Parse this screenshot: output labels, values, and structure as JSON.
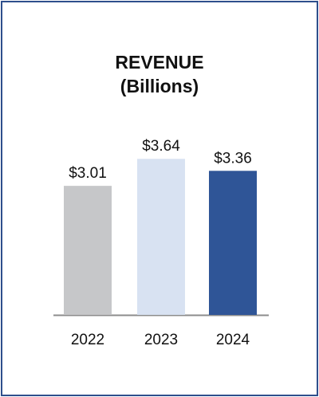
{
  "chart_data": {
    "type": "bar",
    "title": "REVENUE",
    "subtitle": "(Billions)",
    "categories": [
      "2022",
      "2023",
      "2024"
    ],
    "values": [
      3.01,
      3.64,
      3.36
    ],
    "value_labels": [
      "$3.01",
      "$3.64",
      "$3.36"
    ],
    "colors": [
      "#c6c7c9",
      "#d8e2f2",
      "#2f5597"
    ],
    "ylim": [
      0,
      4.5
    ],
    "xlabel": "",
    "ylabel": "",
    "grid": false,
    "legend": "none"
  }
}
